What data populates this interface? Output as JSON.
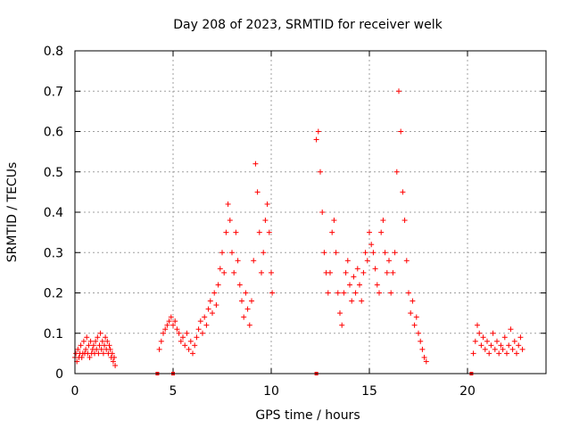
{
  "chart_data": {
    "type": "scatter",
    "title": "Day 208 of 2023, SRMTID for receiver welk",
    "xlabel": "GPS time / hours",
    "ylabel": "SRMTID / TECUs",
    "xlim": [
      0,
      24
    ],
    "ylim": [
      0,
      0.8
    ],
    "xticks": [
      0,
      5,
      10,
      15,
      20
    ],
    "yticks": [
      0,
      0.1,
      0.2,
      0.3,
      0.4,
      0.5,
      0.6,
      0.7,
      0.8
    ],
    "xtick_labels": [
      "0",
      "5",
      "10",
      "15",
      "20"
    ],
    "ytick_labels": [
      "0",
      "0.1",
      "0.2",
      "0.3",
      "0.4",
      "0.5",
      "0.6",
      "0.7",
      "0.8"
    ],
    "grid": true,
    "marker": "+",
    "series_color": "#ff0000",
    "zero_points": [
      4.2,
      5.0,
      12.3,
      20.2
    ],
    "series": [
      {
        "name": "SRMTID",
        "points": [
          [
            0.0,
            0.04
          ],
          [
            0.05,
            0.05
          ],
          [
            0.1,
            0.03
          ],
          [
            0.15,
            0.06
          ],
          [
            0.2,
            0.04
          ],
          [
            0.25,
            0.05
          ],
          [
            0.3,
            0.07
          ],
          [
            0.35,
            0.04
          ],
          [
            0.4,
            0.05
          ],
          [
            0.45,
            0.08
          ],
          [
            0.5,
            0.05
          ],
          [
            0.55,
            0.06
          ],
          [
            0.6,
            0.09
          ],
          [
            0.65,
            0.05
          ],
          [
            0.7,
            0.07
          ],
          [
            0.75,
            0.04
          ],
          [
            0.8,
            0.08
          ],
          [
            0.85,
            0.05
          ],
          [
            0.9,
            0.06
          ],
          [
            0.95,
            0.07
          ],
          [
            1.0,
            0.05
          ],
          [
            1.05,
            0.08
          ],
          [
            1.1,
            0.06
          ],
          [
            1.15,
            0.09
          ],
          [
            1.2,
            0.05
          ],
          [
            1.25,
            0.07
          ],
          [
            1.3,
            0.1
          ],
          [
            1.35,
            0.06
          ],
          [
            1.4,
            0.08
          ],
          [
            1.45,
            0.05
          ],
          [
            1.5,
            0.07
          ],
          [
            1.55,
            0.09
          ],
          [
            1.6,
            0.06
          ],
          [
            1.65,
            0.08
          ],
          [
            1.7,
            0.05
          ],
          [
            1.75,
            0.07
          ],
          [
            1.8,
            0.06
          ],
          [
            1.85,
            0.04
          ],
          [
            1.9,
            0.05
          ],
          [
            1.95,
            0.03
          ],
          [
            2.0,
            0.04
          ],
          [
            2.05,
            0.02
          ],
          [
            4.3,
            0.06
          ],
          [
            4.4,
            0.08
          ],
          [
            4.5,
            0.1
          ],
          [
            4.6,
            0.11
          ],
          [
            4.7,
            0.12
          ],
          [
            4.8,
            0.13
          ],
          [
            4.9,
            0.14
          ],
          [
            5.0,
            0.12
          ],
          [
            5.1,
            0.13
          ],
          [
            5.2,
            0.11
          ],
          [
            5.3,
            0.1
          ],
          [
            5.4,
            0.08
          ],
          [
            5.5,
            0.09
          ],
          [
            5.6,
            0.07
          ],
          [
            5.7,
            0.1
          ],
          [
            5.8,
            0.06
          ],
          [
            5.9,
            0.08
          ],
          [
            6.0,
            0.05
          ],
          [
            6.1,
            0.07
          ],
          [
            6.2,
            0.09
          ],
          [
            6.3,
            0.11
          ],
          [
            6.4,
            0.13
          ],
          [
            6.5,
            0.1
          ],
          [
            6.6,
            0.14
          ],
          [
            6.7,
            0.12
          ],
          [
            6.8,
            0.16
          ],
          [
            6.9,
            0.18
          ],
          [
            7.0,
            0.15
          ],
          [
            7.1,
            0.2
          ],
          [
            7.2,
            0.17
          ],
          [
            7.3,
            0.22
          ],
          [
            7.4,
            0.26
          ],
          [
            7.5,
            0.3
          ],
          [
            7.6,
            0.25
          ],
          [
            7.7,
            0.35
          ],
          [
            7.8,
            0.42
          ],
          [
            7.9,
            0.38
          ],
          [
            8.0,
            0.3
          ],
          [
            8.1,
            0.25
          ],
          [
            8.2,
            0.35
          ],
          [
            8.3,
            0.28
          ],
          [
            8.4,
            0.22
          ],
          [
            8.5,
            0.18
          ],
          [
            8.6,
            0.14
          ],
          [
            8.7,
            0.2
          ],
          [
            8.8,
            0.16
          ],
          [
            8.9,
            0.12
          ],
          [
            9.0,
            0.18
          ],
          [
            9.1,
            0.28
          ],
          [
            9.2,
            0.52
          ],
          [
            9.3,
            0.45
          ],
          [
            9.4,
            0.35
          ],
          [
            9.5,
            0.25
          ],
          [
            9.6,
            0.3
          ],
          [
            9.7,
            0.38
          ],
          [
            9.8,
            0.42
          ],
          [
            9.9,
            0.35
          ],
          [
            10.0,
            0.25
          ],
          [
            10.05,
            0.2
          ],
          [
            12.3,
            0.58
          ],
          [
            12.4,
            0.6
          ],
          [
            12.5,
            0.5
          ],
          [
            12.6,
            0.4
          ],
          [
            12.7,
            0.3
          ],
          [
            12.8,
            0.25
          ],
          [
            12.9,
            0.2
          ],
          [
            13.0,
            0.25
          ],
          [
            13.1,
            0.35
          ],
          [
            13.2,
            0.38
          ],
          [
            13.3,
            0.3
          ],
          [
            13.4,
            0.2
          ],
          [
            13.5,
            0.15
          ],
          [
            13.6,
            0.12
          ],
          [
            13.7,
            0.2
          ],
          [
            13.8,
            0.25
          ],
          [
            13.9,
            0.28
          ],
          [
            14.0,
            0.22
          ],
          [
            14.1,
            0.18
          ],
          [
            14.2,
            0.24
          ],
          [
            14.3,
            0.2
          ],
          [
            14.4,
            0.26
          ],
          [
            14.5,
            0.22
          ],
          [
            14.6,
            0.18
          ],
          [
            14.7,
            0.25
          ],
          [
            14.8,
            0.3
          ],
          [
            14.9,
            0.28
          ],
          [
            15.0,
            0.35
          ],
          [
            15.1,
            0.32
          ],
          [
            15.2,
            0.3
          ],
          [
            15.3,
            0.26
          ],
          [
            15.4,
            0.22
          ],
          [
            15.5,
            0.2
          ],
          [
            15.6,
            0.35
          ],
          [
            15.7,
            0.38
          ],
          [
            15.8,
            0.3
          ],
          [
            15.9,
            0.25
          ],
          [
            16.0,
            0.28
          ],
          [
            16.1,
            0.2
          ],
          [
            16.2,
            0.25
          ],
          [
            16.3,
            0.3
          ],
          [
            16.4,
            0.5
          ],
          [
            16.5,
            0.7
          ],
          [
            16.6,
            0.6
          ],
          [
            16.7,
            0.45
          ],
          [
            16.8,
            0.38
          ],
          [
            16.9,
            0.28
          ],
          [
            17.0,
            0.2
          ],
          [
            17.1,
            0.15
          ],
          [
            17.2,
            0.18
          ],
          [
            17.3,
            0.12
          ],
          [
            17.4,
            0.14
          ],
          [
            17.5,
            0.1
          ],
          [
            17.6,
            0.08
          ],
          [
            17.7,
            0.06
          ],
          [
            17.8,
            0.04
          ],
          [
            17.9,
            0.03
          ],
          [
            20.3,
            0.05
          ],
          [
            20.4,
            0.08
          ],
          [
            20.5,
            0.12
          ],
          [
            20.6,
            0.1
          ],
          [
            20.7,
            0.07
          ],
          [
            20.8,
            0.09
          ],
          [
            20.9,
            0.06
          ],
          [
            21.0,
            0.08
          ],
          [
            21.1,
            0.05
          ],
          [
            21.2,
            0.07
          ],
          [
            21.3,
            0.1
          ],
          [
            21.4,
            0.06
          ],
          [
            21.5,
            0.08
          ],
          [
            21.6,
            0.05
          ],
          [
            21.7,
            0.07
          ],
          [
            21.8,
            0.06
          ],
          [
            21.9,
            0.09
          ],
          [
            22.0,
            0.05
          ],
          [
            22.1,
            0.07
          ],
          [
            22.2,
            0.11
          ],
          [
            22.3,
            0.06
          ],
          [
            22.4,
            0.08
          ],
          [
            22.5,
            0.05
          ],
          [
            22.6,
            0.07
          ],
          [
            22.7,
            0.09
          ],
          [
            22.8,
            0.06
          ]
        ]
      }
    ]
  }
}
